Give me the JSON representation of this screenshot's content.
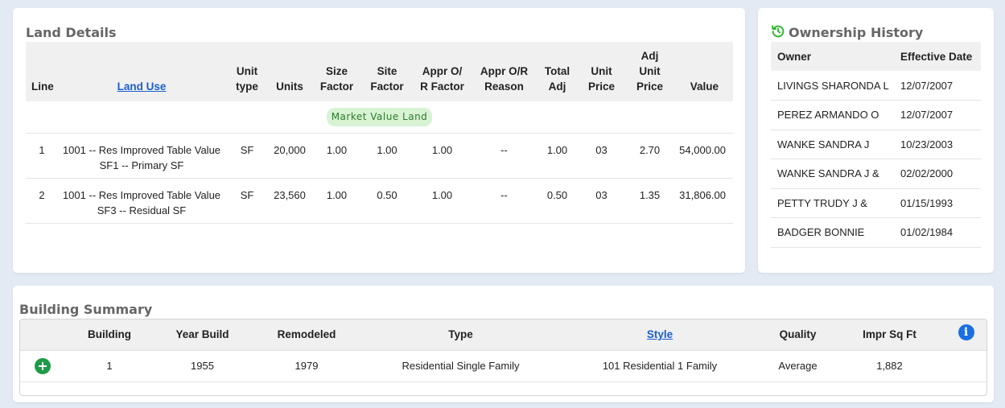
{
  "land": {
    "title": "Land Details",
    "headers": {
      "line": "Line",
      "land_use": "Land Use",
      "unit_type": [
        "Unit",
        "type"
      ],
      "units": "Units",
      "size_factor": [
        "Size",
        "Factor"
      ],
      "site_factor": [
        "Site",
        "Factor"
      ],
      "appr_factor": [
        "Appr O/",
        "R Factor"
      ],
      "appr_reason": [
        "Appr O/R",
        "Reason"
      ],
      "total_adj": [
        "Total",
        "Adj"
      ],
      "unit_price": [
        "Unit",
        "Price"
      ],
      "adj_unit_price": [
        "Adj",
        "Unit",
        "Price"
      ],
      "value": "Value"
    },
    "market_value_label": "Market Value Land",
    "rows": [
      {
        "line": "1",
        "land_use_1": "1001 -- Res Improved Table Value",
        "land_use_2": "SF1 -- Primary SF",
        "unit_type": "SF",
        "units": "20,000",
        "size_factor": "1.00",
        "site_factor": "1.00",
        "appr_factor": "1.00",
        "appr_reason": "--",
        "total_adj": "1.00",
        "unit_price": "03",
        "adj_unit_price": "2.70",
        "value": "54,000.00"
      },
      {
        "line": "2",
        "land_use_1": "1001 -- Res Improved Table Value",
        "land_use_2": "SF3 -- Residual SF",
        "unit_type": "SF",
        "units": "23,560",
        "size_factor": "1.00",
        "site_factor": "0.50",
        "appr_factor": "1.00",
        "appr_reason": "--",
        "total_adj": "0.50",
        "unit_price": "03",
        "adj_unit_price": "1.35",
        "value": "31,806.00"
      }
    ]
  },
  "ownership": {
    "title": "Ownership History",
    "icon": "history-icon",
    "accent": "#2eb82e",
    "headers": {
      "owner": "Owner",
      "date": "Effective Date"
    },
    "rows": [
      {
        "owner": "LIVINGS SHARONDA L",
        "date": "12/07/2007"
      },
      {
        "owner": "PEREZ ARMANDO O",
        "date": "12/07/2007"
      },
      {
        "owner": "WANKE SANDRA J",
        "date": "10/23/2003"
      },
      {
        "owner": "WANKE SANDRA J &",
        "date": "02/02/2000"
      },
      {
        "owner": "PETTY TRUDY J &",
        "date": "01/15/1993"
      },
      {
        "owner": "BADGER BONNIE",
        "date": "01/02/1984"
      }
    ]
  },
  "building": {
    "title": "Building Summary",
    "headers": {
      "building": "Building",
      "year_build": "Year Build",
      "remodeled": "Remodeled",
      "type": "Type",
      "style": "Style",
      "quality": "Quality",
      "impr_sq_ft": "Impr Sq Ft"
    },
    "info_icon_label": "i",
    "rows": [
      {
        "building": "1",
        "year_build": "1955",
        "remodeled": "1979",
        "type": "Residential Single Family",
        "style": "101 Residential 1 Family",
        "quality": "Average",
        "impr_sq_ft": "1,882"
      }
    ]
  }
}
